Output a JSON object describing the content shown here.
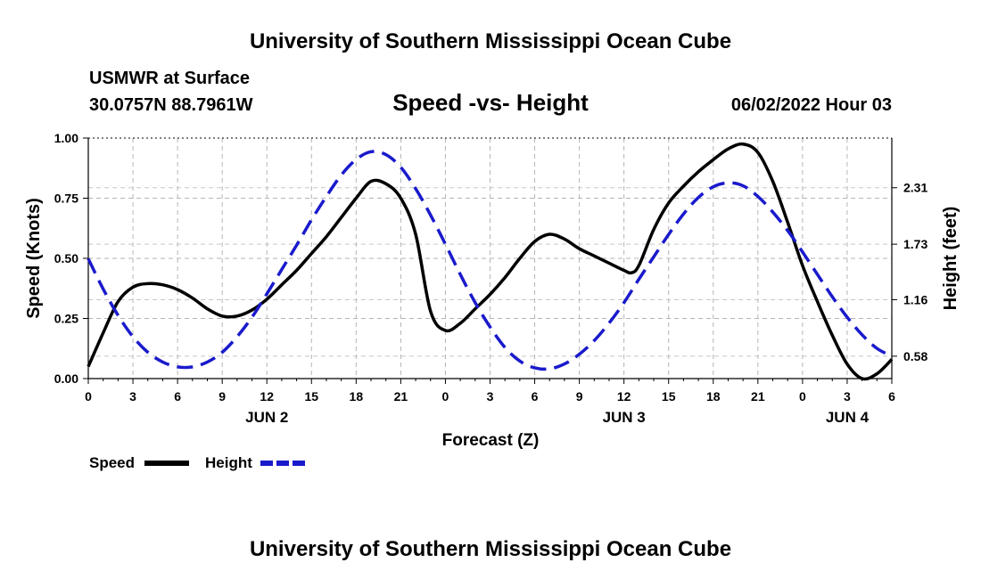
{
  "header": {
    "title": "University of Southern Mississippi Ocean Cube",
    "station": "USMWR at Surface",
    "location": "30.0757N  88.7961W",
    "datetime": "06/02/2022 Hour 03",
    "footer_title": "University of Southern Mississippi Ocean Cube"
  },
  "chart_data": {
    "type": "line",
    "title": "Speed -vs- Height",
    "xlabel": "Forecast (Z)",
    "ylabel": "Speed (Knots)",
    "y2label": "Height (feet)",
    "xlim": [
      0,
      54
    ],
    "ylim": [
      0,
      1
    ],
    "y2lim": [
      0.35,
      2.82
    ],
    "grid": true,
    "legend_position": "bottom-left",
    "x_ticks": [
      0,
      3,
      6,
      9,
      12,
      15,
      18,
      21,
      24,
      27,
      30,
      33,
      36,
      39,
      42,
      45,
      48,
      51,
      54
    ],
    "x_tick_labels": [
      "0",
      "3",
      "6",
      "9",
      "12",
      "15",
      "18",
      "21",
      "0",
      "3",
      "6",
      "9",
      "12",
      "15",
      "18",
      "21",
      "0",
      "3",
      "6"
    ],
    "day_labels": [
      {
        "x": 12,
        "label": "JUN 2"
      },
      {
        "x": 36,
        "label": "JUN 3"
      },
      {
        "x": 51,
        "label": "JUN 4"
      }
    ],
    "y_ticks": [
      0,
      0.25,
      0.5,
      0.75,
      1.0
    ],
    "y_tick_labels": [
      "0.00",
      "0.25",
      "0.50",
      "0.75",
      "1.00"
    ],
    "y2_ticks": [
      0.58,
      1.16,
      1.73,
      2.31
    ],
    "y2_tick_labels": [
      "0.58",
      "1.16",
      "1.73",
      "2.31"
    ],
    "series": [
      {
        "name": "Speed",
        "axis": "left",
        "color": "#000000",
        "dash": "solid",
        "x": [
          0,
          1,
          2,
          3,
          4,
          5,
          6,
          7,
          8,
          9,
          10,
          11,
          12,
          13,
          14,
          15,
          16,
          17,
          18,
          19,
          20,
          21,
          22,
          23,
          24,
          25,
          26,
          27,
          28,
          29,
          30,
          31,
          32,
          33,
          34,
          35,
          36,
          36.5,
          37,
          38,
          39,
          40,
          41,
          42,
          43,
          44,
          45,
          46,
          47,
          48,
          49,
          50,
          51,
          52,
          53,
          54
        ],
        "values": [
          0.05,
          0.19,
          0.32,
          0.38,
          0.395,
          0.39,
          0.37,
          0.335,
          0.29,
          0.26,
          0.26,
          0.285,
          0.33,
          0.39,
          0.45,
          0.52,
          0.59,
          0.67,
          0.75,
          0.82,
          0.81,
          0.75,
          0.6,
          0.28,
          0.2,
          0.23,
          0.29,
          0.35,
          0.42,
          0.5,
          0.57,
          0.6,
          0.58,
          0.54,
          0.51,
          0.48,
          0.45,
          0.44,
          0.47,
          0.62,
          0.73,
          0.8,
          0.86,
          0.91,
          0.955,
          0.975,
          0.94,
          0.82,
          0.65,
          0.47,
          0.32,
          0.18,
          0.06,
          0.0,
          0.02,
          0.08
        ]
      },
      {
        "name": "Height",
        "axis": "right",
        "color": "#1a1acc",
        "dash": "dashed",
        "x": [
          0,
          1,
          2,
          3,
          4,
          5,
          6,
          7,
          8,
          9,
          10,
          11,
          12,
          13,
          14,
          15,
          16,
          17,
          18,
          19,
          20,
          21,
          22,
          23,
          24,
          25,
          26,
          27,
          28,
          29,
          30,
          31,
          32,
          33,
          34,
          35,
          36,
          37,
          38,
          39,
          40,
          41,
          42,
          43,
          44,
          45,
          46,
          47,
          48,
          49,
          50,
          51,
          52,
          53,
          54
        ],
        "values": [
          1.58,
          1.27,
          1.0,
          0.78,
          0.62,
          0.52,
          0.47,
          0.47,
          0.52,
          0.62,
          0.78,
          0.98,
          1.22,
          1.47,
          1.72,
          1.98,
          2.22,
          2.44,
          2.6,
          2.68,
          2.65,
          2.52,
          2.3,
          2.03,
          1.73,
          1.42,
          1.13,
          0.88,
          0.67,
          0.53,
          0.46,
          0.45,
          0.5,
          0.6,
          0.74,
          0.92,
          1.13,
          1.37,
          1.6,
          1.83,
          2.04,
          2.21,
          2.32,
          2.36,
          2.33,
          2.22,
          2.06,
          1.87,
          1.65,
          1.42,
          1.19,
          0.98,
          0.8,
          0.66,
          0.58
        ]
      }
    ]
  }
}
